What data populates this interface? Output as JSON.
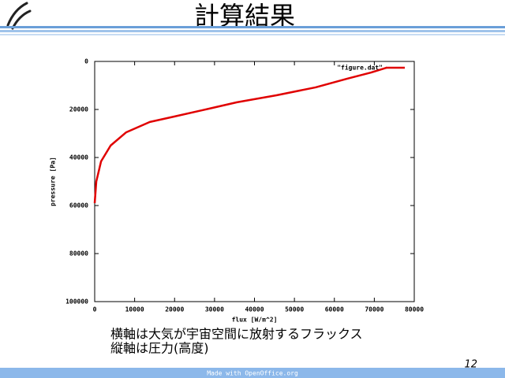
{
  "slide": {
    "title": "計算結果",
    "caption": [
      "横軸は大気が宇宙空間に放射するフラックス",
      "縦軸は圧力(高度)"
    ],
    "page_number": "12",
    "footer": "Made with OpenOffice.org"
  },
  "chart_data": {
    "type": "line",
    "xlabel": "flux [W/m^2]",
    "ylabel": "pressure [Pa]",
    "xlim": [
      0,
      80000
    ],
    "xticks": [
      0,
      10000,
      20000,
      30000,
      40000,
      50000,
      60000,
      70000,
      80000
    ],
    "ylim": [
      0,
      100000
    ],
    "yticks": [
      0,
      20000,
      40000,
      60000,
      80000,
      100000
    ],
    "y_reversed": true,
    "grid": false,
    "legend": "top-right",
    "series": [
      {
        "name": "\"figure.dat\"",
        "color": "#e00000",
        "x": [
          0,
          400,
          1600,
          4000,
          7900,
          13800,
          19800,
          29600,
          35600,
          45500,
          55300,
          63200,
          69200,
          73100
        ],
        "values": [
          59000,
          50000,
          41600,
          35000,
          29500,
          25200,
          23000,
          19300,
          17000,
          14100,
          10800,
          7200,
          4600,
          2600
        ]
      }
    ]
  }
}
